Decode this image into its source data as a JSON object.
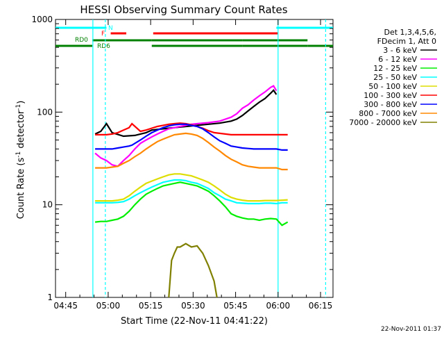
{
  "chart_data": {
    "type": "line",
    "title": "HESSI Observing Summary Count Rates",
    "xlabel": "Start Time (22-Nov-11 04:41:22)",
    "ylabel_main": "Count Rate (s",
    "ylabel_sup1": "-1",
    "ylabel_mid": " detector",
    "ylabel_sup2": "-1",
    "ylabel_end": ")",
    "yscale": "log",
    "xlim_minutes": [
      0,
      98
    ],
    "ylim": [
      1,
      1000
    ],
    "x_ticks": [
      {
        "label": "04:45",
        "minute": 3.6
      },
      {
        "label": "05:00",
        "minute": 18.6
      },
      {
        "label": "05:15",
        "minute": 33.6
      },
      {
        "label": "05:30",
        "minute": 48.6
      },
      {
        "label": "05:45",
        "minute": 63.6
      },
      {
        "label": "06:00",
        "minute": 78.6
      },
      {
        "label": "06:15",
        "minute": 93.6
      }
    ],
    "y_ticks": [
      {
        "label": "1",
        "value": 1
      },
      {
        "label": "10",
        "value": 10
      },
      {
        "label": "100",
        "value": 100
      },
      {
        "label": "1000",
        "value": 1000
      }
    ],
    "legend_header": [
      "Det 1,3,4,5,6,",
      "FDecim 1, Att 0"
    ],
    "series": [
      {
        "name": "3 - 6 keV",
        "color": "#000000",
        "points": [
          [
            14,
            58
          ],
          [
            16,
            62
          ],
          [
            18,
            75
          ],
          [
            20,
            60
          ],
          [
            24,
            55
          ],
          [
            28,
            56
          ],
          [
            32,
            60
          ],
          [
            34,
            64
          ],
          [
            38,
            66
          ],
          [
            42,
            68
          ],
          [
            46,
            70
          ],
          [
            50,
            72
          ],
          [
            54,
            74
          ],
          [
            58,
            76
          ],
          [
            62,
            80
          ],
          [
            64,
            84
          ],
          [
            66,
            92
          ],
          [
            68,
            103
          ],
          [
            70,
            115
          ],
          [
            72,
            128
          ],
          [
            74,
            140
          ],
          [
            76,
            160
          ],
          [
            77,
            172
          ],
          [
            78,
            155
          ]
        ]
      },
      {
        "name": "6 - 12 keV",
        "color": "#ff00ff",
        "points": [
          [
            14,
            36
          ],
          [
            16,
            32
          ],
          [
            18,
            30
          ],
          [
            20,
            27
          ],
          [
            22,
            26
          ],
          [
            24,
            30
          ],
          [
            26,
            34
          ],
          [
            28,
            40
          ],
          [
            30,
            46
          ],
          [
            32,
            50
          ],
          [
            34,
            54
          ],
          [
            36,
            58
          ],
          [
            38,
            62
          ],
          [
            40,
            66
          ],
          [
            42,
            68
          ],
          [
            44,
            70
          ],
          [
            46,
            72
          ],
          [
            48,
            74
          ],
          [
            50,
            75
          ],
          [
            54,
            77
          ],
          [
            58,
            80
          ],
          [
            62,
            88
          ],
          [
            64,
            96
          ],
          [
            66,
            110
          ],
          [
            68,
            120
          ],
          [
            70,
            135
          ],
          [
            72,
            150
          ],
          [
            74,
            165
          ],
          [
            76,
            185
          ],
          [
            77,
            192
          ],
          [
            78,
            170
          ]
        ]
      },
      {
        "name": "12 - 25 keV",
        "color": "#00ee00",
        "points": [
          [
            14,
            6.5
          ],
          [
            16,
            6.6
          ],
          [
            18,
            6.6
          ],
          [
            20,
            6.8
          ],
          [
            22,
            7.0
          ],
          [
            24,
            7.5
          ],
          [
            26,
            8.5
          ],
          [
            28,
            10.0
          ],
          [
            30,
            11.5
          ],
          [
            32,
            13.0
          ],
          [
            34,
            14.0
          ],
          [
            36,
            15.0
          ],
          [
            38,
            16.0
          ],
          [
            40,
            16.5
          ],
          [
            42,
            17.0
          ],
          [
            44,
            17.5
          ],
          [
            46,
            17.0
          ],
          [
            48,
            16.5
          ],
          [
            50,
            16.0
          ],
          [
            52,
            15.0
          ],
          [
            54,
            14.0
          ],
          [
            56,
            12.5
          ],
          [
            58,
            11.0
          ],
          [
            60,
            9.5
          ],
          [
            62,
            8.0
          ],
          [
            64,
            7.5
          ],
          [
            66,
            7.2
          ],
          [
            68,
            7.0
          ],
          [
            70,
            7.0
          ],
          [
            72,
            6.8
          ],
          [
            74,
            7.0
          ],
          [
            76,
            7.1
          ],
          [
            78,
            7.0
          ],
          [
            80,
            6.0
          ],
          [
            82,
            6.5
          ]
        ]
      },
      {
        "name": "25 - 50 keV",
        "color": "#00ffff",
        "points": [
          [
            14,
            10.5
          ],
          [
            16,
            10.5
          ],
          [
            18,
            10.5
          ],
          [
            20,
            10.5
          ],
          [
            22,
            10.6
          ],
          [
            24,
            10.8
          ],
          [
            26,
            11.5
          ],
          [
            28,
            12.5
          ],
          [
            30,
            13.5
          ],
          [
            32,
            14.5
          ],
          [
            34,
            15.5
          ],
          [
            36,
            16.5
          ],
          [
            38,
            17.5
          ],
          [
            40,
            18.0
          ],
          [
            42,
            18.5
          ],
          [
            44,
            18.5
          ],
          [
            46,
            18.2
          ],
          [
            48,
            17.5
          ],
          [
            50,
            17.0
          ],
          [
            52,
            16.0
          ],
          [
            54,
            15.0
          ],
          [
            56,
            13.5
          ],
          [
            58,
            12.5
          ],
          [
            60,
            11.5
          ],
          [
            62,
            11.0
          ],
          [
            64,
            10.5
          ],
          [
            66,
            10.4
          ],
          [
            68,
            10.3
          ],
          [
            70,
            10.3
          ],
          [
            72,
            10.3
          ],
          [
            74,
            10.4
          ],
          [
            76,
            10.4
          ],
          [
            78,
            10.3
          ],
          [
            80,
            10.5
          ],
          [
            82,
            10.5
          ]
        ]
      },
      {
        "name": "50 - 100 keV",
        "color": "#dddd00",
        "points": [
          [
            14,
            11
          ],
          [
            16,
            11
          ],
          [
            18,
            11
          ],
          [
            20,
            11
          ],
          [
            22,
            11.2
          ],
          [
            24,
            11.5
          ],
          [
            26,
            12.5
          ],
          [
            28,
            14
          ],
          [
            30,
            15.5
          ],
          [
            32,
            17
          ],
          [
            34,
            18
          ],
          [
            36,
            19
          ],
          [
            38,
            20
          ],
          [
            40,
            21
          ],
          [
            42,
            21.5
          ],
          [
            44,
            21.5
          ],
          [
            46,
            21
          ],
          [
            48,
            20.5
          ],
          [
            50,
            19.5
          ],
          [
            52,
            18.5
          ],
          [
            54,
            17.5
          ],
          [
            56,
            16
          ],
          [
            58,
            14.5
          ],
          [
            60,
            13
          ],
          [
            62,
            12
          ],
          [
            64,
            11.5
          ],
          [
            66,
            11.2
          ],
          [
            68,
            11
          ],
          [
            70,
            11
          ],
          [
            72,
            11
          ],
          [
            74,
            11.1
          ],
          [
            76,
            11.1
          ],
          [
            78,
            11.1
          ],
          [
            80,
            11.2
          ],
          [
            82,
            11.3
          ]
        ]
      },
      {
        "name": "100 - 300 keV",
        "color": "#ff0000",
        "points": [
          [
            14,
            57
          ],
          [
            16,
            57
          ],
          [
            18,
            57
          ],
          [
            20,
            58
          ],
          [
            22,
            60
          ],
          [
            24,
            64
          ],
          [
            26,
            68
          ],
          [
            27,
            75
          ],
          [
            30,
            62
          ],
          [
            32,
            64
          ],
          [
            34,
            67
          ],
          [
            36,
            70
          ],
          [
            38,
            72
          ],
          [
            40,
            74
          ],
          [
            42,
            75
          ],
          [
            44,
            76
          ],
          [
            46,
            75
          ],
          [
            48,
            73
          ],
          [
            50,
            70
          ],
          [
            52,
            67
          ],
          [
            54,
            63
          ],
          [
            56,
            60
          ],
          [
            58,
            59
          ],
          [
            60,
            58
          ],
          [
            62,
            57
          ],
          [
            64,
            57
          ],
          [
            66,
            57
          ],
          [
            68,
            57
          ],
          [
            70,
            57
          ],
          [
            72,
            57
          ],
          [
            74,
            57
          ],
          [
            76,
            57
          ],
          [
            78,
            57
          ],
          [
            80,
            57
          ],
          [
            82,
            57
          ]
        ]
      },
      {
        "name": "300 - 800 keV",
        "color": "#0000ff",
        "points": [
          [
            14,
            40
          ],
          [
            16,
            40
          ],
          [
            18,
            40
          ],
          [
            20,
            40
          ],
          [
            22,
            41
          ],
          [
            24,
            42
          ],
          [
            26,
            43
          ],
          [
            27,
            44
          ],
          [
            30,
            50
          ],
          [
            32,
            55
          ],
          [
            34,
            60
          ],
          [
            36,
            64
          ],
          [
            38,
            68
          ],
          [
            40,
            71
          ],
          [
            42,
            73
          ],
          [
            44,
            74
          ],
          [
            46,
            74
          ],
          [
            48,
            72
          ],
          [
            50,
            70
          ],
          [
            52,
            66
          ],
          [
            54,
            60
          ],
          [
            56,
            54
          ],
          [
            58,
            49
          ],
          [
            60,
            46
          ],
          [
            62,
            43
          ],
          [
            64,
            42
          ],
          [
            66,
            41
          ],
          [
            68,
            40.5
          ],
          [
            70,
            40
          ],
          [
            72,
            40
          ],
          [
            74,
            40
          ],
          [
            76,
            40
          ],
          [
            78,
            40
          ],
          [
            80,
            39
          ],
          [
            82,
            39
          ]
        ]
      },
      {
        "name": "800 - 7000 keV",
        "color": "#ff8800",
        "points": [
          [
            14,
            25
          ],
          [
            16,
            25
          ],
          [
            18,
            25
          ],
          [
            20,
            25.5
          ],
          [
            22,
            26
          ],
          [
            24,
            28
          ],
          [
            26,
            30
          ],
          [
            28,
            33
          ],
          [
            30,
            36
          ],
          [
            32,
            40
          ],
          [
            34,
            44
          ],
          [
            36,
            48
          ],
          [
            38,
            51
          ],
          [
            40,
            54
          ],
          [
            42,
            57
          ],
          [
            44,
            58
          ],
          [
            46,
            59
          ],
          [
            48,
            58
          ],
          [
            50,
            56
          ],
          [
            52,
            52
          ],
          [
            54,
            47
          ],
          [
            56,
            42
          ],
          [
            58,
            38
          ],
          [
            60,
            34
          ],
          [
            62,
            31
          ],
          [
            64,
            29
          ],
          [
            66,
            27
          ],
          [
            68,
            26
          ],
          [
            70,
            25.5
          ],
          [
            72,
            25
          ],
          [
            74,
            25
          ],
          [
            76,
            25
          ],
          [
            78,
            25
          ],
          [
            80,
            24
          ],
          [
            82,
            24
          ]
        ]
      },
      {
        "name": "7000 - 20000 keV",
        "color": "#808000",
        "points": [
          [
            40,
            1.0
          ],
          [
            41,
            2.5
          ],
          [
            42,
            3.0
          ],
          [
            43,
            3.5
          ],
          [
            44,
            3.5
          ],
          [
            46,
            3.8
          ],
          [
            48,
            3.5
          ],
          [
            50,
            3.6
          ],
          [
            52,
            3.0
          ],
          [
            54,
            2.2
          ],
          [
            56,
            1.5
          ],
          [
            57,
            1.0
          ]
        ]
      }
    ],
    "flag_labels": [
      {
        "text": "N",
        "color": "#00ffff"
      },
      {
        "text": "F",
        "color": "#ff0000"
      },
      {
        "text": "RD0",
        "color": "#008000"
      },
      {
        "text": "RD6",
        "color": "#008000"
      }
    ],
    "flag_bars": [
      {
        "color": "#00ffff",
        "segments": [
          [
            0,
            18
          ],
          [
            78,
            98
          ]
        ],
        "y": 40
      },
      {
        "color": "#ff0000",
        "segments": [
          [
            19.5,
            25
          ],
          [
            34.5,
            78.5
          ]
        ],
        "y": 48
      },
      {
        "color": "#008000",
        "segments": [
          [
            13,
            34
          ],
          [
            34,
            66
          ],
          [
            66,
            89
          ]
        ],
        "y": 58
      },
      {
        "color": "#008000",
        "segments": [
          [
            0,
            13
          ],
          [
            34,
            66
          ],
          [
            66,
            89
          ],
          [
            89,
            98
          ]
        ],
        "y": 66
      }
    ],
    "vlines": [
      {
        "color": "#00ffff",
        "minute": 13.2,
        "style": "solid"
      },
      {
        "color": "#00ffff",
        "minute": 17.6,
        "style": "dashed"
      },
      {
        "color": "#00ffff",
        "minute": 78.6,
        "style": "solid"
      },
      {
        "color": "#00ffff",
        "minute": 95.4,
        "style": "dashed"
      }
    ],
    "timestamp": "22-Nov-2011 01:37"
  }
}
